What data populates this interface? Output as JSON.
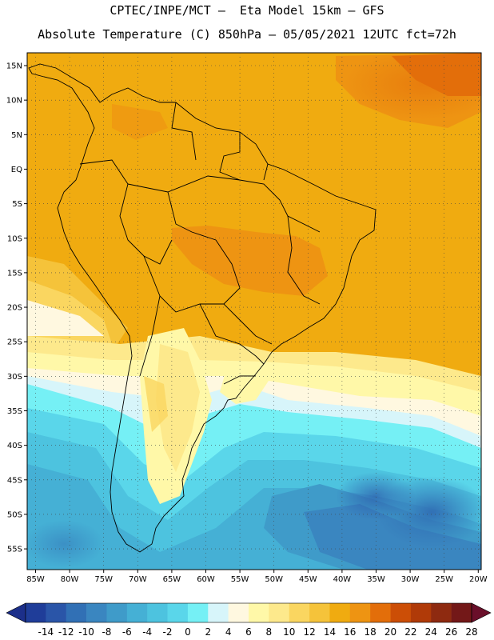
{
  "header": {
    "line1": "CPTEC/INPE/MCT –  Eta Model 15km – GFS",
    "line2": "Absolute Temperature (C) 850hPa – 05/05/2021 12UTC fct=72h"
  },
  "axes": {
    "lat_labels": [
      "15N",
      "10N",
      "5N",
      "EQ",
      "5S",
      "10S",
      "15S",
      "20S",
      "25S",
      "30S",
      "35S",
      "40S",
      "45S",
      "50S",
      "55S"
    ],
    "lon_labels": [
      "85W",
      "80W",
      "75W",
      "70W",
      "65W",
      "60W",
      "55W",
      "50W",
      "45W",
      "40W",
      "35W",
      "30W",
      "25W",
      "20W"
    ]
  },
  "colorbar": {
    "labels": [
      "-14",
      "-12",
      "-10",
      "-8",
      "-6",
      "-4",
      "-2",
      "0",
      "2",
      "4",
      "6",
      "8",
      "10",
      "12",
      "14",
      "16",
      "18",
      "20",
      "22",
      "24",
      "26",
      "28"
    ],
    "colors": [
      "#1f3d99",
      "#2a55a8",
      "#3170b5",
      "#3a86c0",
      "#3f9bc9",
      "#45b0d5",
      "#4dc3df",
      "#5ad6ea",
      "#75f0f5",
      "#d7f5fa",
      "#fff8e0",
      "#fff8a8",
      "#fde98c",
      "#fad660",
      "#f5c33a",
      "#f0ab10",
      "#ee9412",
      "#e36e0a",
      "#cc4e06",
      "#b03a08",
      "#8e2a10",
      "#731818"
    ],
    "under_color": "#1c2f8a",
    "over_color": "#6a0f2a"
  }
}
